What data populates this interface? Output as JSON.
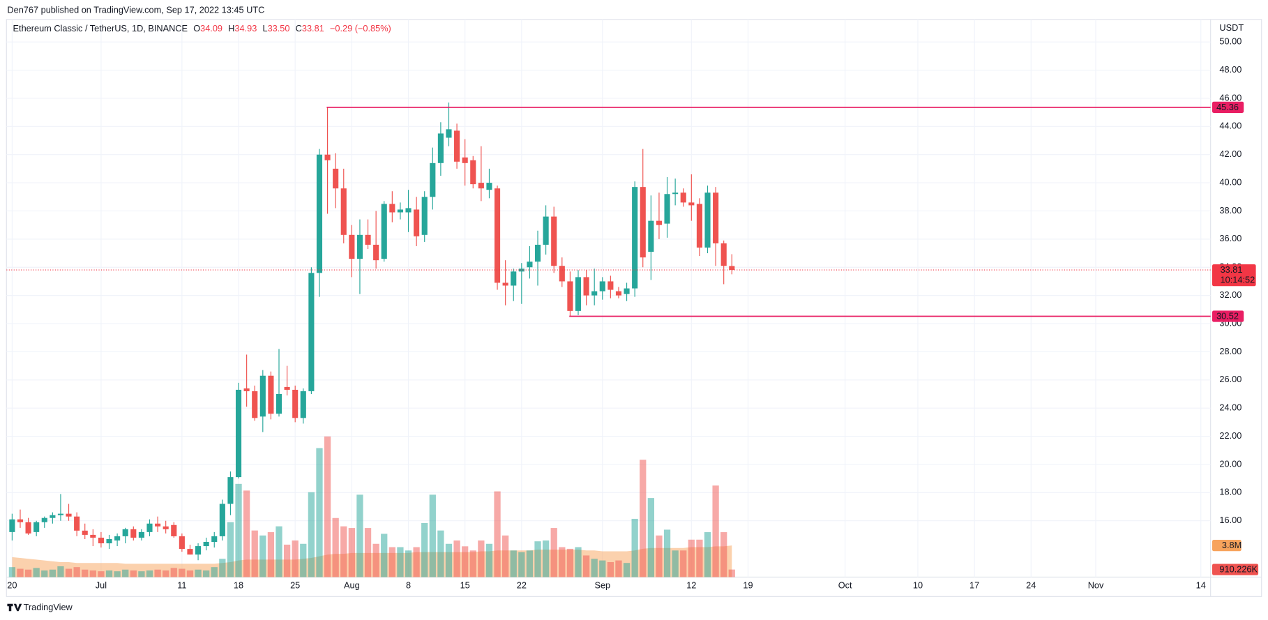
{
  "header": {
    "publisher": "Den767 published on TradingView.com, Sep 17, 2022 13:45 UTC",
    "brand": "TradingView"
  },
  "chart_data": {
    "type": "candlestick",
    "legend": {
      "symbol": "Ethereum Classic / TetherUS, 1D, BINANCE",
      "open_label": "O",
      "open": "34.09",
      "high_label": "H",
      "high": "34.93",
      "low_label": "L",
      "low": "33.50",
      "close_label": "C",
      "close": "33.81",
      "change": "−0.29 (−0.85%)"
    },
    "y_axis_unit": "USDT",
    "x": [
      "Jun 20",
      "Jun 21",
      "Jun 22",
      "Jun 23",
      "Jun 24",
      "Jun 25",
      "Jun 26",
      "Jun 27",
      "Jun 28",
      "Jun 29",
      "Jun 30",
      "Jul 1",
      "Jul 2",
      "Jul 3",
      "Jul 4",
      "Jul 5",
      "Jul 6",
      "Jul 7",
      "Jul 8",
      "Jul 9",
      "Jul 10",
      "Jul 11",
      "Jul 12",
      "Jul 13",
      "Jul 14",
      "Jul 15",
      "Jul 16",
      "Jul 17",
      "Jul 18",
      "Jul 19",
      "Jul 20",
      "Jul 21",
      "Jul 22",
      "Jul 23",
      "Jul 24",
      "Jul 25",
      "Jul 26",
      "Jul 27",
      "Jul 28",
      "Jul 29",
      "Jul 30",
      "Jul 31",
      "Aug 1",
      "Aug 2",
      "Aug 3",
      "Aug 4",
      "Aug 5",
      "Aug 6",
      "Aug 7",
      "Aug 8",
      "Aug 9",
      "Aug 10",
      "Aug 11",
      "Aug 12",
      "Aug 13",
      "Aug 14",
      "Aug 15",
      "Aug 16",
      "Aug 17",
      "Aug 18",
      "Aug 19",
      "Aug 20",
      "Aug 21",
      "Aug 22",
      "Aug 23",
      "Aug 24",
      "Aug 25",
      "Aug 26",
      "Aug 27",
      "Aug 28",
      "Aug 29",
      "Aug 30",
      "Aug 31",
      "Sep 1",
      "Sep 2",
      "Sep 3",
      "Sep 4",
      "Sep 5",
      "Sep 6",
      "Sep 7",
      "Sep 8",
      "Sep 9",
      "Sep 10",
      "Sep 11",
      "Sep 12",
      "Sep 13",
      "Sep 14",
      "Sep 15",
      "Sep 16",
      "Sep 17"
    ],
    "open": [
      15.2,
      16.1,
      15.9,
      15.2,
      15.9,
      16.2,
      16.4,
      16.5,
      16.3,
      15.3,
      15.0,
      14.8,
      14.4,
      14.6,
      14.9,
      15.4,
      14.8,
      15.2,
      15.8,
      15.6,
      15.7,
      14.9,
      14.0,
      13.6,
      14.2,
      14.5,
      14.9,
      17.2,
      19.1,
      25.4,
      25.2,
      23.4,
      26.3,
      23.6,
      25.5,
      25.3,
      23.3,
      25.2,
      33.6,
      42.0,
      41.0,
      39.6,
      36.3,
      34.6,
      36.3,
      35.6,
      34.6,
      38.5,
      37.9,
      37.9,
      38.1,
      36.3,
      39.0,
      41.4,
      43.2,
      43.7,
      41.8,
      41.6,
      40.0,
      39.5,
      39.6,
      32.9,
      32.7,
      33.7,
      34.0,
      34.4,
      35.6,
      37.6,
      34.1,
      33.0,
      30.9,
      33.3,
      32.0,
      32.3,
      33.0,
      32.3,
      32.1,
      32.5,
      39.7,
      35.1,
      37.3,
      37.1,
      39.2,
      39.3,
      38.6,
      38.5,
      35.4,
      39.3,
      35.7,
      34.09
    ],
    "high": [
      16.5,
      16.8,
      16.2,
      16.0,
      16.3,
      16.6,
      17.9,
      17.2,
      16.6,
      15.8,
      15.4,
      15.2,
      15.0,
      15.1,
      15.5,
      15.6,
      15.4,
      16.1,
      16.3,
      16.0,
      15.9,
      15.1,
      14.3,
      14.4,
      14.8,
      15.2,
      17.5,
      19.5,
      25.8,
      27.8,
      25.6,
      26.7,
      26.6,
      28.2,
      27.0,
      25.6,
      25.4,
      34.0,
      42.4,
      45.36,
      42.1,
      41.0,
      37.0,
      37.4,
      37.4,
      38.0,
      38.7,
      39.4,
      38.6,
      39.5,
      39.0,
      39.4,
      42.5,
      44.3,
      45.7,
      44.2,
      43.1,
      41.9,
      42.6,
      41.0,
      39.8,
      34.5,
      33.9,
      34.3,
      35.5,
      36.6,
      38.4,
      38.3,
      34.7,
      33.7,
      33.8,
      33.8,
      33.9,
      33.3,
      33.4,
      32.6,
      32.9,
      40.1,
      42.4,
      39.1,
      39.3,
      40.4,
      40.3,
      39.6,
      40.6,
      38.9,
      39.8,
      39.7,
      35.9,
      34.93
    ],
    "low": [
      14.6,
      15.5,
      15.0,
      14.9,
      15.5,
      15.8,
      16.0,
      16.0,
      14.9,
      14.7,
      14.2,
      14.1,
      14.0,
      14.2,
      14.4,
      14.6,
      14.6,
      14.9,
      15.2,
      15.1,
      14.8,
      13.8,
      13.6,
      13.2,
      13.9,
      14.1,
      14.6,
      16.4,
      19.0,
      24.1,
      23.1,
      22.3,
      23.2,
      23.4,
      24.9,
      23.0,
      22.9,
      25.0,
      31.9,
      37.8,
      38.2,
      35.7,
      33.3,
      32.1,
      35.3,
      33.9,
      34.4,
      37.2,
      37.4,
      36.5,
      35.5,
      35.8,
      38.1,
      40.5,
      42.6,
      41.0,
      39.8,
      39.6,
      38.7,
      38.9,
      32.4,
      31.3,
      31.6,
      31.4,
      33.2,
      32.7,
      34.9,
      33.6,
      32.6,
      30.52,
      30.6,
      31.3,
      31.3,
      31.7,
      31.8,
      31.8,
      31.6,
      31.9,
      34.0,
      33.1,
      36.0,
      36.1,
      38.4,
      38.3,
      37.3,
      34.8,
      35.0,
      34.1,
      32.8,
      33.5
    ],
    "close": [
      16.1,
      15.9,
      15.1,
      15.9,
      16.2,
      16.4,
      16.5,
      16.3,
      15.3,
      15.0,
      14.8,
      14.4,
      14.7,
      14.9,
      15.4,
      14.8,
      15.2,
      15.8,
      15.6,
      15.4,
      14.9,
      14.0,
      13.6,
      14.2,
      14.5,
      14.9,
      17.2,
      19.1,
      25.3,
      25.2,
      23.3,
      26.3,
      23.6,
      25.0,
      25.3,
      23.3,
      25.2,
      33.6,
      42.0,
      41.6,
      39.6,
      36.3,
      34.6,
      36.3,
      35.6,
      34.5,
      38.5,
      37.9,
      38.1,
      38.2,
      36.2,
      39.0,
      41.4,
      43.5,
      43.8,
      41.5,
      41.4,
      39.9,
      39.6,
      40.0,
      32.9,
      32.7,
      33.7,
      33.9,
      34.4,
      35.6,
      37.6,
      34.1,
      33.0,
      30.9,
      33.3,
      32.0,
      32.3,
      33.0,
      32.4,
      32.0,
      32.5,
      39.7,
      34.7,
      37.3,
      37.0,
      39.2,
      39.3,
      38.6,
      38.4,
      35.4,
      39.3,
      35.7,
      34.1,
      33.81
    ],
    "up_color": "#26a69a",
    "down_color": "#ef5350",
    "countdown": "10:14:52",
    "price_line_color": "#f23645",
    "levels": [
      {
        "value": 45.36,
        "start": "Jul 29",
        "color": "#e91e63"
      },
      {
        "value": 30.52,
        "start": "Aug 28",
        "color": "#e91e63"
      }
    ],
    "ylim": [
      12.0,
      51.6
    ],
    "yticks": [
      {
        "value": 16,
        "label": "16.00"
      },
      {
        "value": 18,
        "label": "18.00"
      },
      {
        "value": 20,
        "label": "20.00"
      },
      {
        "value": 22,
        "label": "22.00"
      },
      {
        "value": 24,
        "label": "24.00"
      },
      {
        "value": 26,
        "label": "26.00"
      },
      {
        "value": 28,
        "label": "28.00"
      },
      {
        "value": 30,
        "label": "30.00"
      },
      {
        "value": 32,
        "label": "32.00"
      },
      {
        "value": 34,
        "label": "34.00"
      },
      {
        "value": 36,
        "label": "36.00"
      },
      {
        "value": 38,
        "label": "38.00"
      },
      {
        "value": 40,
        "label": "40.00"
      },
      {
        "value": 42,
        "label": "42.00"
      },
      {
        "value": 44,
        "label": "44.00"
      },
      {
        "value": 46,
        "label": "46.00"
      },
      {
        "value": 48,
        "label": "48.00"
      },
      {
        "value": 50,
        "label": "50.00"
      }
    ],
    "xlim": [
      "Jun 19",
      "Nov 15"
    ],
    "xticks": [
      {
        "value": "Jun 20",
        "label": "20"
      },
      {
        "value": "Jul 1",
        "label": "Jul"
      },
      {
        "value": "Jul 11",
        "label": "11"
      },
      {
        "value": "Jul 18",
        "label": "18"
      },
      {
        "value": "Jul 25",
        "label": "25"
      },
      {
        "value": "Aug 1",
        "label": "Aug"
      },
      {
        "value": "Aug 8",
        "label": "8"
      },
      {
        "value": "Aug 15",
        "label": "15"
      },
      {
        "value": "Aug 22",
        "label": "22"
      },
      {
        "value": "Sep 1",
        "label": "Sep"
      },
      {
        "value": "Sep 12",
        "label": "12"
      },
      {
        "value": "Sep 19",
        "label": "19"
      },
      {
        "value": "Oct 1",
        "label": "Oct"
      },
      {
        "value": "Oct 10",
        "label": "10"
      },
      {
        "value": "Oct 17",
        "label": "17"
      },
      {
        "value": "Oct 24",
        "label": "24"
      },
      {
        "value": "Nov 1",
        "label": "Nov"
      },
      {
        "value": "Nov 14",
        "label": "14"
      }
    ],
    "grid": true,
    "volume": {
      "axis": "y2",
      "up_color": "rgba(38,166,154,0.5)",
      "down_color": "rgba(239,83,80,0.5)",
      "last_label": "910.226K",
      "label_color": "#ef5350",
      "values": [
        1.2,
        1.0,
        0.9,
        1.1,
        0.8,
        0.9,
        1.3,
        1.0,
        1.2,
        0.9,
        0.8,
        0.7,
        0.8,
        0.7,
        0.9,
        0.8,
        0.7,
        0.8,
        0.9,
        0.8,
        1.1,
        1.0,
        0.8,
        0.9,
        0.8,
        1.2,
        2.2,
        6.6,
        11.2,
        10.4,
        5.6,
        5.0,
        5.4,
        6.1,
        3.9,
        4.4,
        4.0,
        10.2,
        15.5,
        16.9,
        7.1,
        6.1,
        5.9,
        9.9,
        5.9,
        4.0,
        5.2,
        3.6,
        3.6,
        3.2,
        3.6,
        6.5,
        9.9,
        5.6,
        4.0,
        4.4,
        3.7,
        3.2,
        4.4,
        4.0,
        10.3,
        5.0,
        3.2,
        3.0,
        3.2,
        4.3,
        4.4,
        5.9,
        3.6,
        3.4,
        3.6,
        2.6,
        2.2,
        2.0,
        1.8,
        2.0,
        1.7,
        7.0,
        14.1,
        9.5,
        5.0,
        5.7,
        3.2,
        3.2,
        4.5,
        4.5,
        5.4,
        11.0,
        5.4,
        0.910226
      ]
    },
    "volume_ma": {
      "axis": "y2",
      "color": "#f7a35c",
      "last_label": "3.8M",
      "values": [
        2.4,
        2.3,
        2.2,
        2.1,
        2.0,
        1.9,
        1.8,
        1.8,
        1.7,
        1.7,
        1.7,
        1.7,
        1.7,
        1.7,
        1.6,
        1.6,
        1.6,
        1.6,
        1.6,
        1.6,
        1.6,
        1.6,
        1.6,
        1.6,
        1.6,
        1.6,
        1.7,
        1.8,
        2.0,
        2.1,
        2.1,
        2.1,
        2.1,
        2.1,
        2.1,
        2.1,
        2.2,
        2.3,
        2.5,
        2.7,
        2.8,
        2.8,
        2.9,
        2.9,
        2.9,
        2.9,
        2.9,
        2.9,
        2.9,
        2.9,
        3.0,
        3.0,
        3.0,
        3.0,
        3.0,
        3.0,
        3.0,
        3.0,
        3.1,
        3.1,
        3.2,
        3.2,
        3.2,
        3.2,
        3.2,
        3.3,
        3.3,
        3.3,
        3.3,
        3.3,
        3.3,
        3.2,
        3.2,
        3.1,
        3.1,
        3.1,
        3.1,
        3.2,
        3.4,
        3.5,
        3.5,
        3.5,
        3.5,
        3.5,
        3.6,
        3.6,
        3.6,
        3.7,
        3.7,
        3.8
      ]
    },
    "y2lim": [
      0,
      67
    ]
  }
}
